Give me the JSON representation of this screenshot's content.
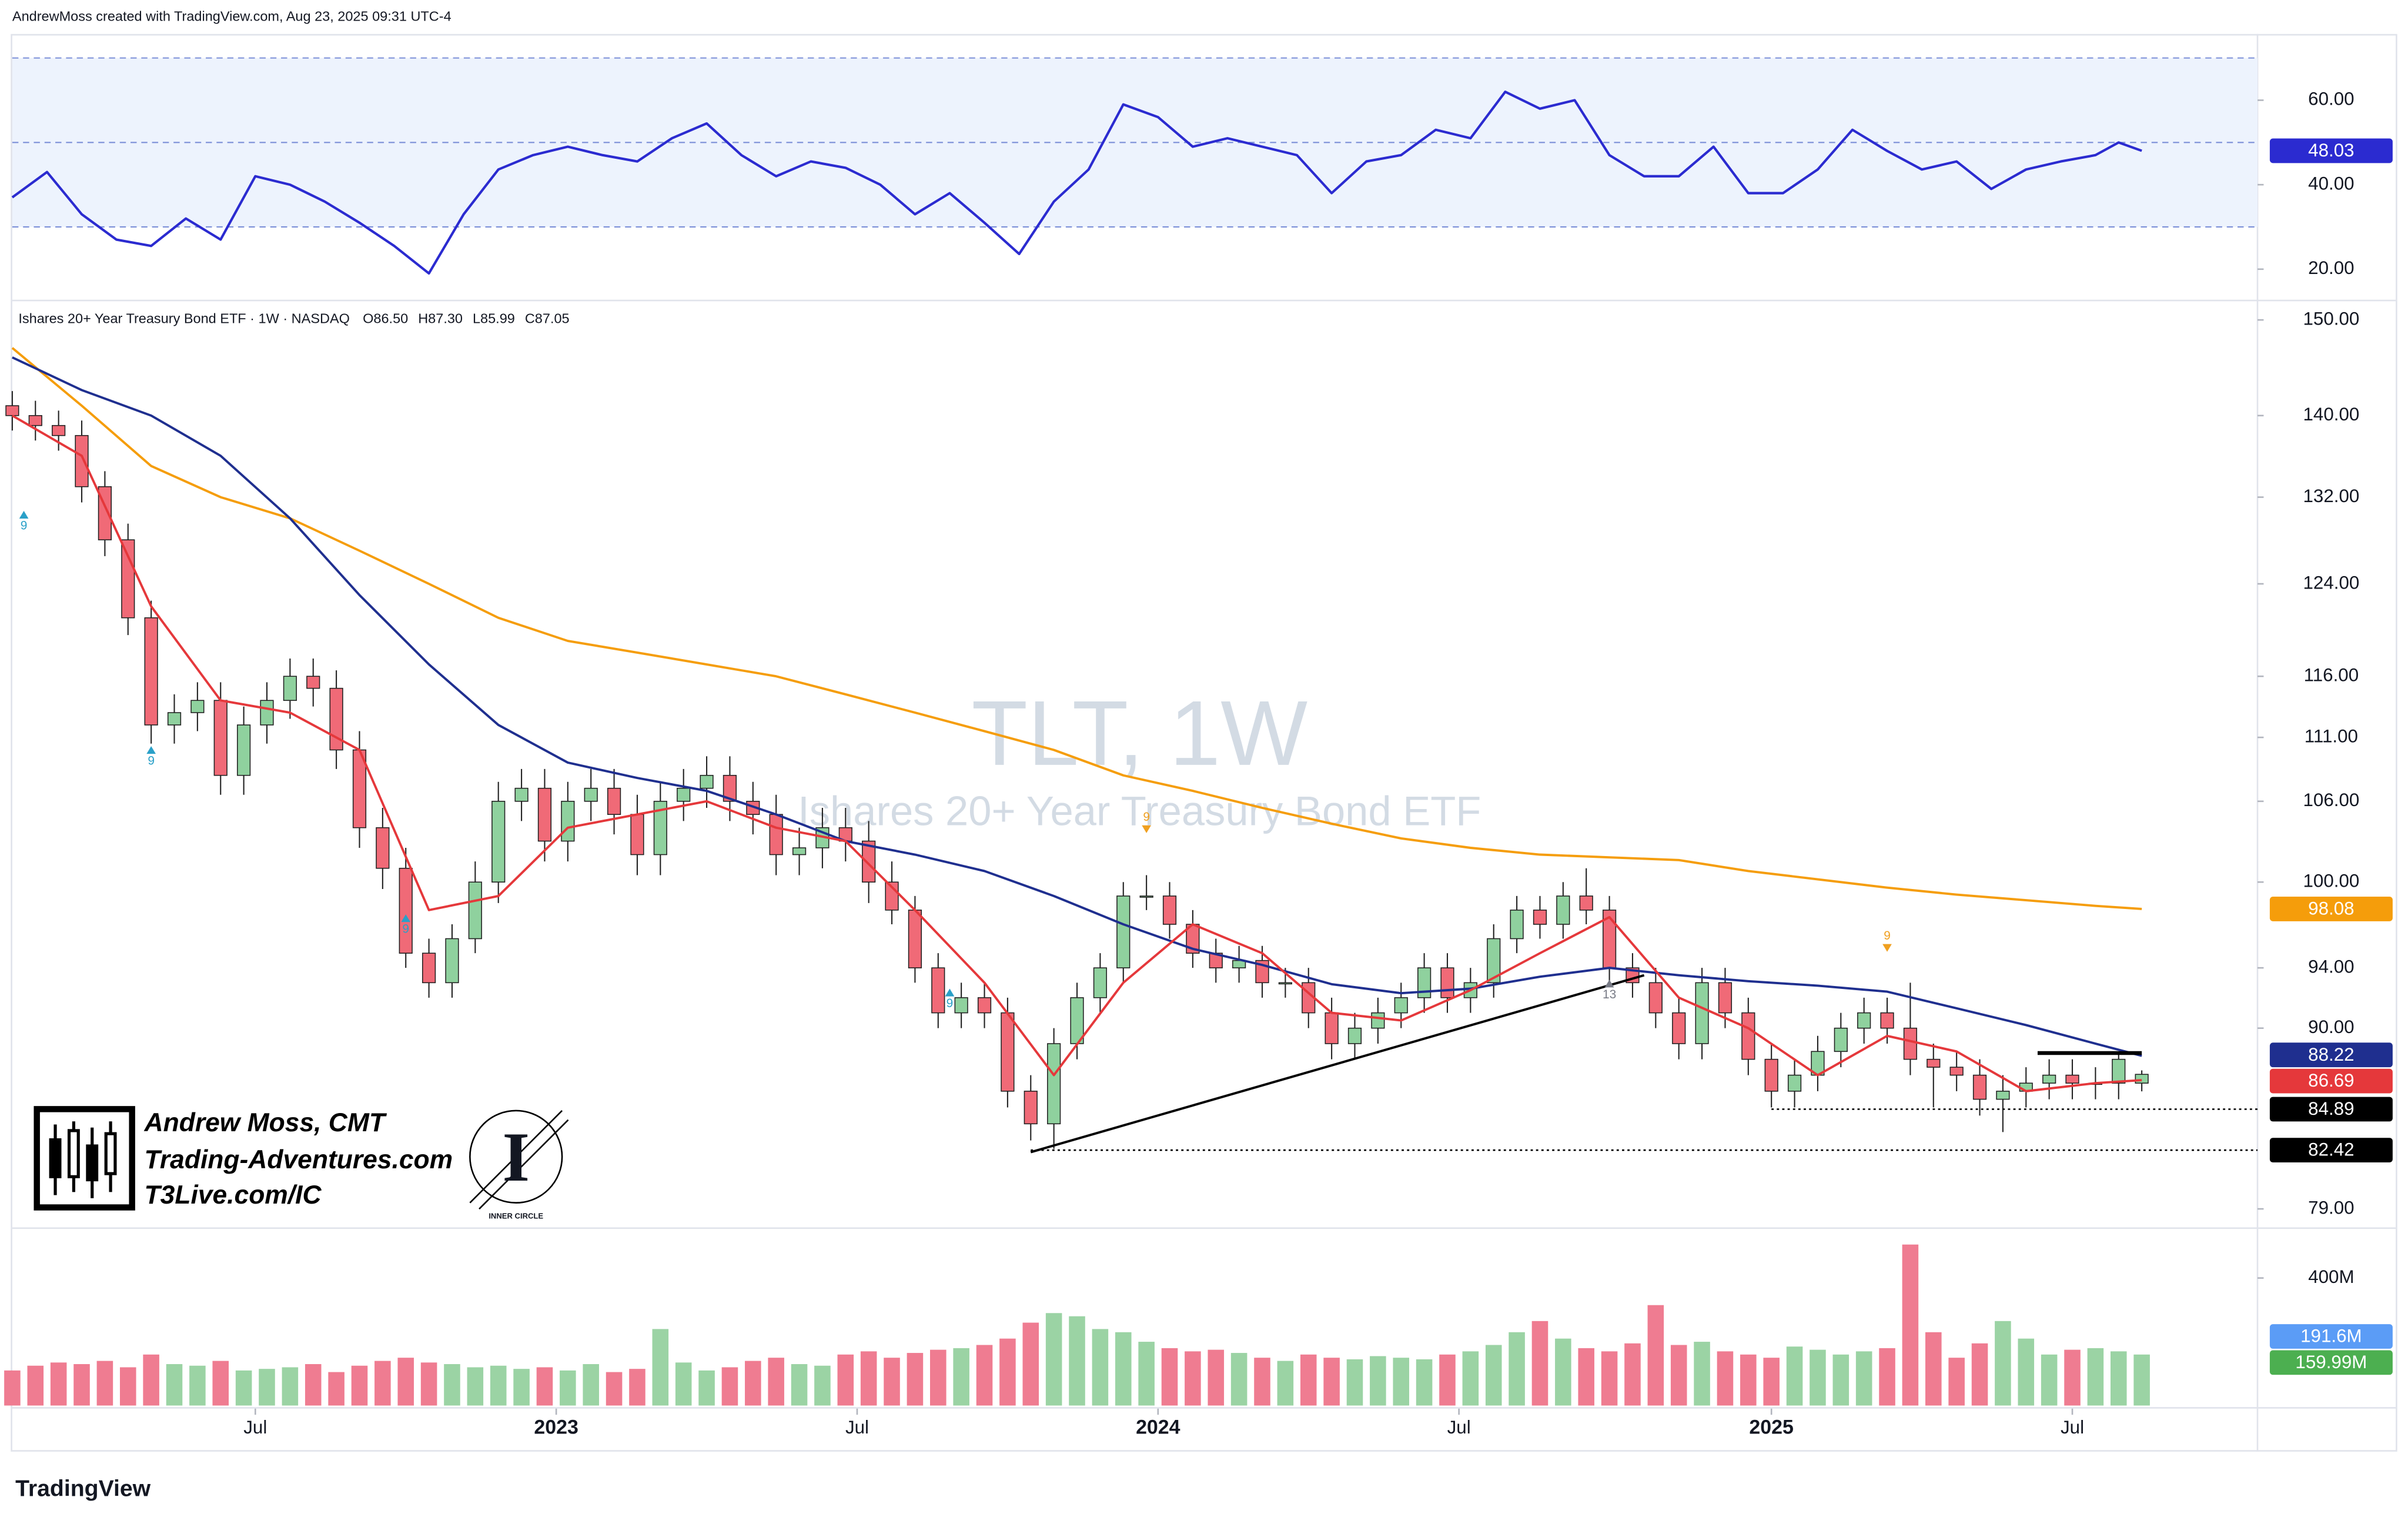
{
  "header": {
    "attribution": "AndrewMoss created with TradingView.com, Aug 23, 2025 09:31 UTC-4"
  },
  "legend": {
    "description": "Ishares 20+ Year Treasury Bond ETF · 1W · NASDAQ",
    "ohlc": [
      "O86.50",
      "H87.30",
      "L85.99",
      "C87.05"
    ]
  },
  "watermark": {
    "symbol": "TLT, 1W",
    "name": "Ishares 20+ Year Treasury Bond ETF"
  },
  "branding": {
    "name": "Andrew Moss, CMT",
    "website": "Trading-Adventures.com",
    "link": "T3Live.com/IC",
    "logo_letter": "I",
    "logo_text": "INNER CIRCLE"
  },
  "footer": {
    "logo": "TradingView"
  },
  "chart_data": [
    {
      "type": "line",
      "color": "#2b2bd0",
      "band_color": "#edf3fd",
      "grid": false,
      "x": [
        0,
        3,
        6,
        9,
        12,
        15,
        18,
        21,
        24,
        27,
        30,
        33,
        36,
        39,
        42,
        45,
        48,
        51,
        54,
        57,
        60,
        63,
        66,
        69,
        72,
        75,
        78,
        81,
        84,
        87,
        90,
        93,
        96,
        99,
        102,
        105,
        108,
        111,
        114,
        117,
        120,
        123,
        126,
        129,
        132,
        135,
        138,
        141,
        144,
        147,
        150,
        153,
        156,
        159,
        162,
        165,
        168,
        171,
        174,
        177,
        180,
        182,
        184
      ],
      "values": [
        37,
        43,
        33,
        27,
        25.5,
        32,
        27,
        42,
        40,
        36,
        31,
        25.5,
        19,
        33,
        43.6,
        47,
        49,
        47,
        45.5,
        51,
        54.5,
        47,
        42,
        45.5,
        44,
        40,
        33,
        38,
        31,
        23.6,
        36,
        43.6,
        59,
        56,
        49,
        51,
        49,
        47,
        38,
        45.5,
        47,
        53,
        51,
        62,
        58,
        60,
        47,
        42,
        42,
        49,
        38,
        38,
        43.6,
        53,
        48,
        43.6,
        45.5,
        39,
        43.6,
        45.5,
        47,
        50,
        48.03
      ],
      "levels": [
        70,
        50,
        30
      ],
      "xlim": [
        0,
        194
      ],
      "ylim": [
        13.5,
        73.5
      ],
      "yticks": [
        {
          "value": 60,
          "label": "60.00"
        },
        {
          "value": 40,
          "label": "40.00"
        },
        {
          "value": 20,
          "label": "20.00"
        }
      ]
    },
    {
      "type": "candlestick",
      "log_scale": true,
      "grid": false,
      "up_color": "#8fd19e",
      "down_color": "#f06a77",
      "x": [
        0,
        2,
        4,
        6,
        8,
        10,
        12,
        14,
        16,
        18,
        20,
        22,
        24,
        26,
        28,
        30,
        32,
        34,
        36,
        38,
        40,
        42,
        44,
        46,
        48,
        50,
        52,
        54,
        56,
        58,
        60,
        62,
        64,
        66,
        68,
        70,
        72,
        74,
        76,
        78,
        80,
        82,
        84,
        86,
        88,
        90,
        92,
        94,
        96,
        98,
        100,
        102,
        104,
        106,
        108,
        110,
        112,
        114,
        116,
        118,
        120,
        122,
        124,
        126,
        128,
        130,
        132,
        134,
        136,
        138,
        140,
        142,
        144,
        146,
        148,
        150,
        152,
        154,
        156,
        158,
        160,
        162,
        164,
        166,
        168,
        170,
        172,
        174,
        176,
        178,
        180,
        182,
        184
      ],
      "open": [
        141,
        140,
        139,
        138,
        133,
        128,
        121,
        112,
        113,
        114,
        108,
        112,
        114,
        116,
        115,
        110,
        104,
        101,
        95,
        93,
        96,
        100,
        106,
        107,
        103,
        106,
        107,
        105,
        102,
        106,
        107,
        108,
        106,
        105,
        102,
        102.5,
        104,
        103,
        100,
        98,
        94,
        91,
        92,
        91,
        86,
        84,
        89,
        92,
        94,
        99,
        99,
        97,
        95,
        94,
        94.5,
        93,
        93,
        91,
        89,
        90,
        91,
        92,
        94,
        92,
        93,
        96,
        98,
        97,
        99,
        98,
        94,
        93,
        91,
        89,
        93,
        91,
        88,
        86,
        87,
        88.5,
        90,
        91,
        90,
        88,
        87.5,
        87,
        85.5,
        86,
        86.5,
        87,
        86.5,
        86.5,
        86.5
      ],
      "high": [
        142.5,
        141.5,
        140.5,
        139.5,
        134.5,
        129.5,
        122.5,
        114.5,
        115.5,
        115.5,
        113.5,
        115.5,
        117.5,
        117.5,
        116.5,
        111.5,
        105.5,
        102.5,
        96,
        97,
        101.5,
        107.5,
        108.5,
        108.5,
        107.5,
        108.5,
        108.5,
        106.5,
        107.5,
        108.5,
        109.5,
        109.5,
        107.5,
        106.5,
        104,
        105.5,
        105.5,
        104.5,
        101.5,
        99,
        95,
        93,
        93,
        92,
        87,
        90,
        93,
        95,
        100,
        100.5,
        100,
        98,
        96,
        95.5,
        95.5,
        94,
        94,
        92,
        91,
        92,
        93,
        95,
        95,
        94,
        97,
        99,
        99,
        100,
        101,
        99,
        95,
        94,
        92,
        94,
        94,
        92,
        89,
        88,
        89.5,
        91,
        92,
        92,
        93,
        89,
        88.5,
        88,
        87,
        87.5,
        88,
        88,
        87.5,
        88.5,
        87.3
      ],
      "low": [
        138.5,
        137.5,
        136.5,
        131.5,
        126.5,
        119.5,
        110.5,
        110.5,
        111.5,
        106.5,
        106.5,
        110.5,
        112.5,
        113.5,
        108.5,
        102.5,
        99.5,
        94,
        92,
        92,
        95,
        98.5,
        104.5,
        101.5,
        101.5,
        104.5,
        103.5,
        100.5,
        100.5,
        104.5,
        105.5,
        104.5,
        103.5,
        100.5,
        100.5,
        101,
        101.5,
        98.5,
        97,
        93,
        90,
        90,
        90,
        85,
        83,
        82.5,
        88,
        91,
        93,
        98,
        96,
        94,
        93,
        93,
        92,
        92,
        90,
        88,
        88,
        89,
        90,
        91,
        91,
        91,
        92,
        95,
        96,
        96,
        97,
        93,
        92,
        90,
        88,
        88,
        90,
        87,
        85,
        85,
        86,
        87.5,
        89,
        89,
        87,
        85,
        86,
        84.5,
        83.5,
        85,
        85.5,
        85.5,
        85.5,
        85.5,
        85.99
      ],
      "close": [
        140,
        139,
        138,
        133,
        128,
        121,
        112,
        113,
        114,
        108,
        112,
        114,
        116,
        115,
        110,
        104,
        101,
        95,
        93,
        96,
        100,
        106,
        107,
        103,
        106,
        107,
        105,
        102,
        106,
        107,
        108,
        106,
        105,
        102,
        102.5,
        104,
        103,
        100,
        98,
        94,
        91,
        92,
        91,
        86,
        84,
        89,
        92,
        94,
        99,
        99,
        97,
        95,
        94,
        94.5,
        93,
        93,
        91,
        89,
        90,
        91,
        92,
        94,
        92,
        93,
        96,
        98,
        97,
        99,
        98,
        94,
        93,
        91,
        89,
        93,
        91,
        88,
        86,
        87,
        88.5,
        90,
        91,
        90,
        88,
        87.5,
        87,
        85.5,
        86,
        86.5,
        87,
        86.5,
        86.5,
        88,
        87.05
      ],
      "series": [
        {
          "color": "#f59d0b",
          "x": [
            0,
            6,
            12,
            18,
            24,
            30,
            36,
            42,
            48,
            54,
            60,
            66,
            72,
            78,
            84,
            90,
            96,
            102,
            108,
            114,
            120,
            126,
            132,
            138,
            144,
            150,
            156,
            162,
            168,
            174,
            180,
            184
          ],
          "values": [
            147,
            141,
            135,
            132,
            130,
            127,
            124,
            121,
            119,
            118,
            117,
            116,
            114.5,
            113,
            111.5,
            110,
            108,
            106.8,
            105.5,
            104.3,
            103.2,
            102.5,
            102,
            101.8,
            101.6,
            100.8,
            100.2,
            99.6,
            99.1,
            98.7,
            98.3,
            98.08
          ]
        },
        {
          "color": "#1f2f8f",
          "x": [
            0,
            6,
            12,
            18,
            24,
            30,
            36,
            42,
            48,
            54,
            60,
            66,
            72,
            78,
            84,
            90,
            96,
            102,
            108,
            114,
            120,
            126,
            132,
            138,
            144,
            150,
            156,
            162,
            168,
            174,
            180,
            184
          ],
          "values": [
            146,
            142.6,
            140,
            136,
            130,
            123,
            117,
            112,
            109,
            107.8,
            106.8,
            105,
            103,
            102,
            100.8,
            99,
            97,
            95.3,
            94.2,
            92.9,
            92.3,
            92.6,
            93.4,
            94,
            93.5,
            93.1,
            92.8,
            92.4,
            91.3,
            90.2,
            89,
            88.22
          ]
        },
        {
          "color": "#e5383b",
          "x": [
            0,
            6,
            12,
            18,
            24,
            30,
            36,
            42,
            48,
            54,
            60,
            66,
            72,
            78,
            84,
            90,
            96,
            102,
            108,
            114,
            120,
            126,
            132,
            138,
            144,
            150,
            156,
            162,
            168,
            174,
            180,
            184
          ],
          "values": [
            140,
            136,
            122,
            114,
            113,
            110,
            98,
            99,
            104,
            105,
            106,
            104,
            103,
            98,
            93,
            87,
            93,
            97,
            95,
            91,
            90.5,
            92.5,
            95,
            97.5,
            92,
            90,
            87,
            89.5,
            88.5,
            86,
            86.5,
            86.69
          ]
        }
      ],
      "trendlines": [
        {
          "x": [
            88,
            141
          ],
          "y": [
            82.3,
            93.5
          ],
          "width": 1.5
        },
        {
          "x": [
            175,
            184
          ],
          "y": [
            88.4,
            88.4
          ],
          "width": 2.5
        }
      ],
      "levels": [
        {
          "value": 84.89,
          "from": 152
        },
        {
          "value": 82.42,
          "from": 88
        }
      ],
      "markers": [
        {
          "x": 1,
          "y": 130.7,
          "label": "9",
          "color": "#2aa0c8",
          "direction": "up"
        },
        {
          "x": 12,
          "y": 110.3,
          "label": "9",
          "color": "#2aa0c8",
          "direction": "up"
        },
        {
          "x": 34,
          "y": 97.7,
          "label": "9",
          "color": "#2aa0c8",
          "direction": "up"
        },
        {
          "x": 81,
          "y": 92.6,
          "label": "9",
          "color": "#2aa0c8",
          "direction": "up"
        },
        {
          "x": 98,
          "y": 103.6,
          "label": "9",
          "color": "#f0a020",
          "direction": "down"
        },
        {
          "x": 162,
          "y": 95.1,
          "label": "9",
          "color": "#f0a020",
          "direction": "down"
        },
        {
          "x": 138,
          "y": 93.2,
          "label": "13",
          "color": "#787b86",
          "direction": "up"
        }
      ],
      "xlim": [
        0,
        194
      ],
      "ylim": [
        78.04,
        151.7
      ],
      "yticks": [
        {
          "value": 150,
          "label": "150.00"
        },
        {
          "value": 140,
          "label": "140.00"
        },
        {
          "value": 132,
          "label": "132.00"
        },
        {
          "value": 124,
          "label": "124.00"
        },
        {
          "value": 116,
          "label": "116.00"
        },
        {
          "value": 111,
          "label": "111.00"
        },
        {
          "value": 106,
          "label": "106.00"
        },
        {
          "value": 100,
          "label": "100.00"
        },
        {
          "value": 94,
          "label": "94.00"
        },
        {
          "value": 90,
          "label": "90.00"
        },
        {
          "value": 79,
          "label": "79.00"
        }
      ]
    },
    {
      "type": "bar",
      "grid": false,
      "up_color": "#9bd3a4",
      "down_color": "#ef7c91",
      "values": [
        110,
        125,
        135,
        130,
        140,
        120,
        160,
        130,
        125,
        140,
        110,
        115,
        120,
        130,
        105,
        125,
        140,
        150,
        135,
        130,
        120,
        125,
        115,
        120,
        110,
        130,
        105,
        115,
        240,
        135,
        110,
        120,
        140,
        150,
        130,
        125,
        160,
        170,
        150,
        165,
        175,
        180,
        190,
        210,
        260,
        290,
        280,
        240,
        230,
        200,
        180,
        170,
        175,
        165,
        150,
        140,
        160,
        150,
        145,
        155,
        150,
        145,
        160,
        170,
        190,
        230,
        265,
        210,
        180,
        170,
        195,
        315,
        190,
        200,
        170,
        160,
        150,
        185,
        175,
        160,
        170,
        180,
        505,
        230,
        150,
        195,
        265,
        210,
        160,
        175,
        180,
        170,
        159.99
      ],
      "annotations": [
        {
          "value": 191.6,
          "label": "191.6M",
          "color": "#5b9cf6"
        },
        {
          "value": 159.99,
          "label": "159.99M",
          "color": "#4caf50"
        }
      ],
      "xlim": [
        0,
        194
      ],
      "ylim": [
        0,
        554
      ],
      "yticks": [
        {
          "value": 400,
          "label": "400M"
        }
      ],
      "xticks": [
        {
          "value": 21,
          "label": "Jul"
        },
        {
          "value": 47,
          "label": "2023"
        },
        {
          "value": 73,
          "label": "Jul"
        },
        {
          "value": 99,
          "label": "2024"
        },
        {
          "value": 125,
          "label": "Jul"
        },
        {
          "value": 152,
          "label": "2025"
        },
        {
          "value": 178,
          "label": "Jul"
        }
      ]
    }
  ]
}
